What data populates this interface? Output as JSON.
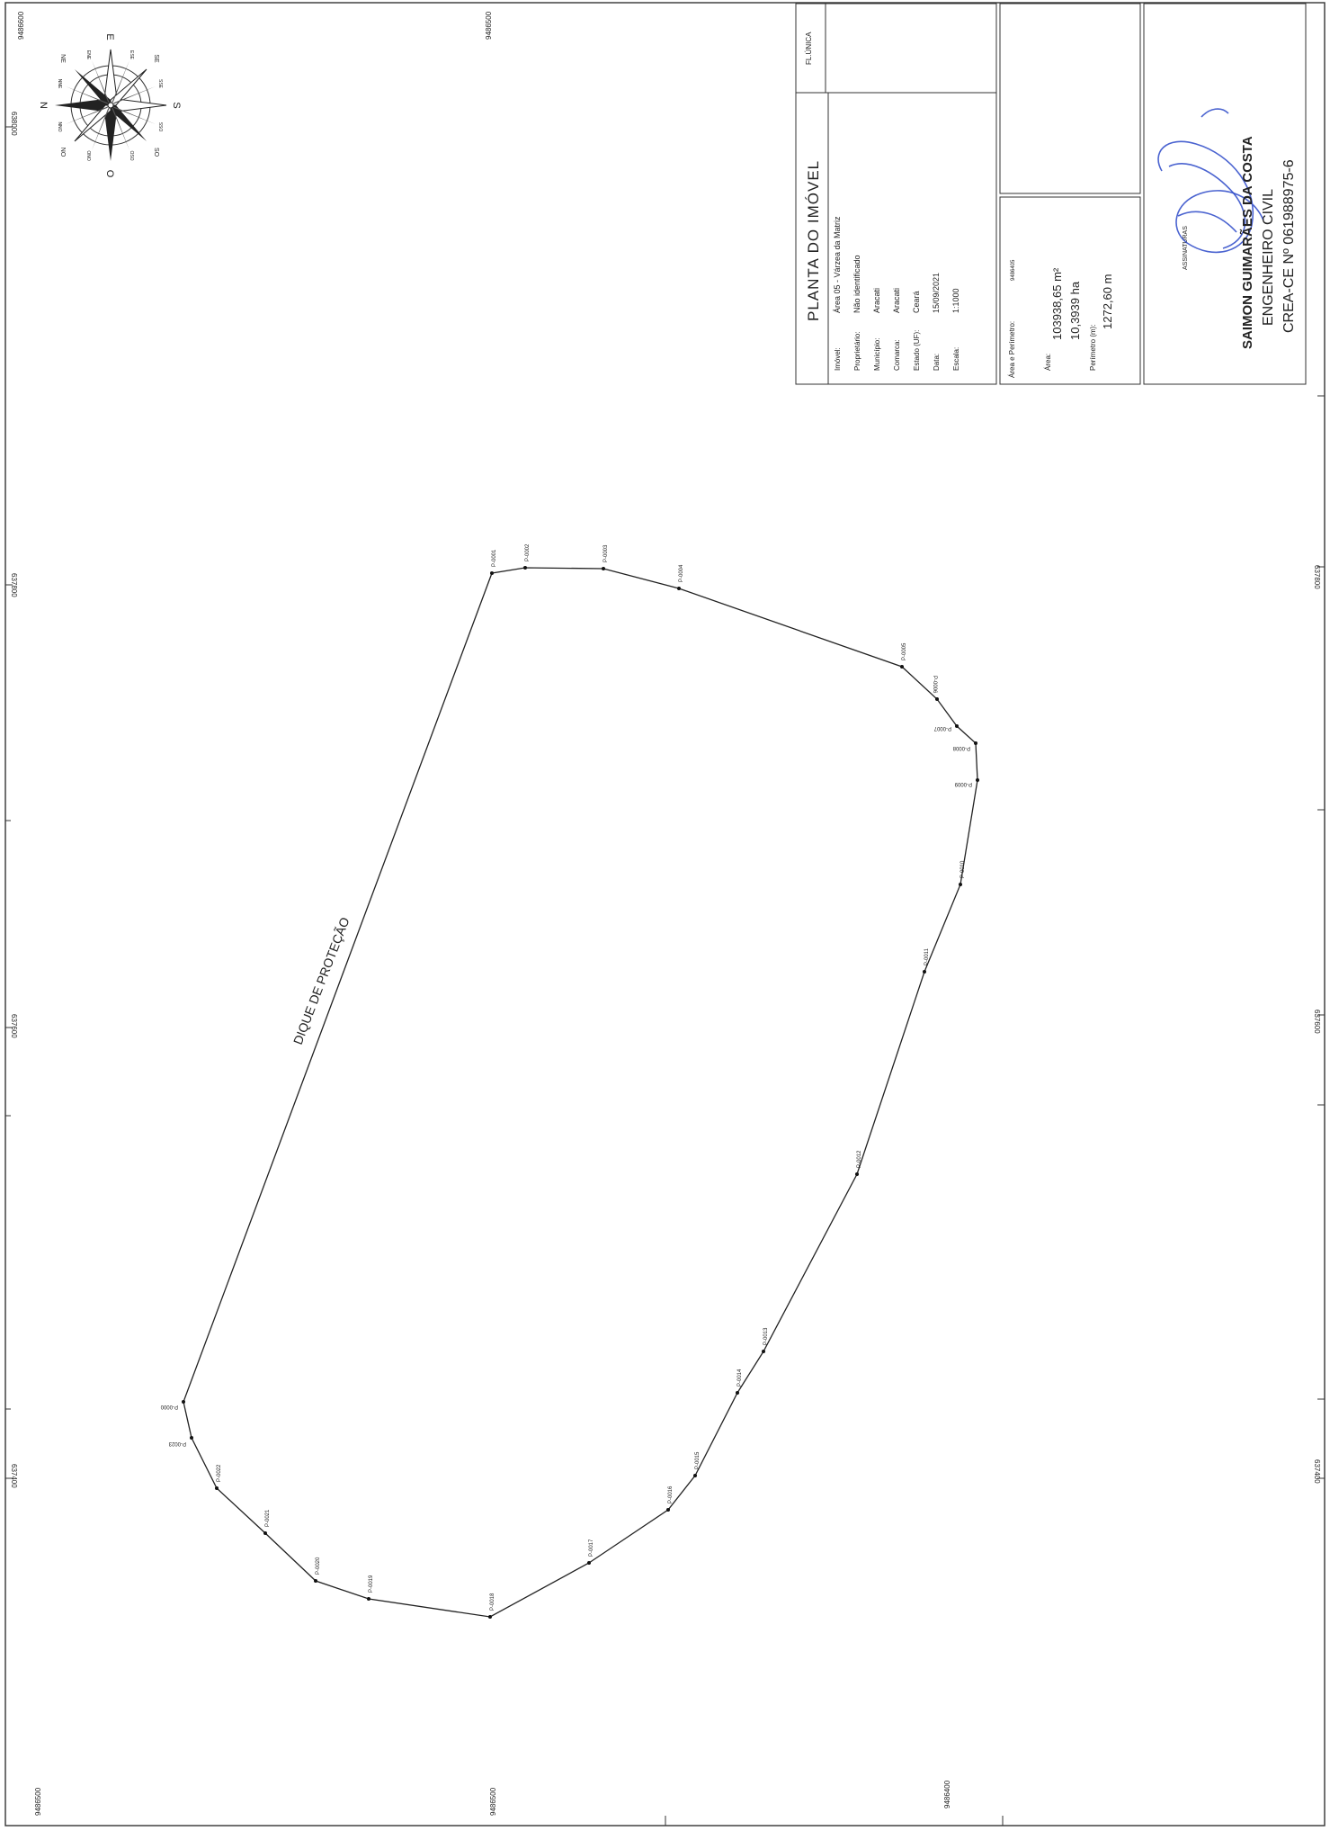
{
  "title_block": {
    "sheet_label": "FL.ÚNICA",
    "title": "PLANTA DO IMÓVEL",
    "fields": [
      {
        "label": "Imóvel:",
        "value": "Área 05 - Várzea da Matriz"
      },
      {
        "label": "Proprietário:",
        "value": "Não identificado"
      },
      {
        "label": "Município:",
        "value": "Aracati"
      },
      {
        "label": "Comarca:",
        "value": "Aracati"
      },
      {
        "label": "Estado (UF):",
        "value": "Ceará"
      },
      {
        "label": "Data:",
        "value": "15/09/2021"
      },
      {
        "label": "Escala:",
        "value": "1:1000"
      }
    ],
    "area_header": "Área e Perímetro:",
    "area_header_code": "9486405",
    "area_label": "Área:",
    "area_m2": "103938,65 m²",
    "area_ha": "10,3939 ha",
    "perimeter_label": "Perímetro (m):",
    "perimeter": "1272,60 m",
    "signatures_label": "ASSINATURAS",
    "engineer_name": "SAIMON GUIMARÃES DA COSTA",
    "engineer_title": "ENGENHEIRO CIVIL",
    "engineer_crea": "CREA-CE Nº 061988975-6"
  },
  "compass": {
    "cardinals": [
      "N",
      "S",
      "E",
      "O"
    ],
    "intercardinals": [
      "NE",
      "SE",
      "SO",
      "NO"
    ],
    "minor": [
      "NNE",
      "ENE",
      "ESE",
      "SSE",
      "SSO",
      "OSO",
      "ONO",
      "NNO"
    ]
  },
  "grid": {
    "top": [
      "9486600",
      "9486500"
    ],
    "bottom": [
      "9486500",
      "9486500",
      "9486400"
    ],
    "left": [
      "638000",
      "637800",
      "637600",
      "637400"
    ],
    "right": [
      "637800",
      "637600",
      "637400"
    ]
  },
  "map": {
    "feature_label": "DIQUE DE PROTEÇÃO",
    "vertices": [
      {
        "label": "P-0001"
      },
      {
        "label": "P-0002"
      },
      {
        "label": "P-0003"
      },
      {
        "label": "P-0004"
      },
      {
        "label": "P-0005"
      },
      {
        "label": "P-0006"
      },
      {
        "label": "P-0007"
      },
      {
        "label": "P-0008"
      },
      {
        "label": "P-0009"
      },
      {
        "label": "P-0010"
      },
      {
        "label": "P-0011"
      },
      {
        "label": "P-0012"
      },
      {
        "label": "P-0013"
      },
      {
        "label": "P-0014"
      },
      {
        "label": "P-0015"
      },
      {
        "label": "P-0016"
      },
      {
        "label": "P-0017"
      },
      {
        "label": "P-0018"
      },
      {
        "label": "P-0019"
      },
      {
        "label": "P-0020"
      },
      {
        "label": "P-0021"
      },
      {
        "label": "P-0022"
      },
      {
        "label": "P-0023"
      },
      {
        "label": "P-0000"
      }
    ]
  }
}
